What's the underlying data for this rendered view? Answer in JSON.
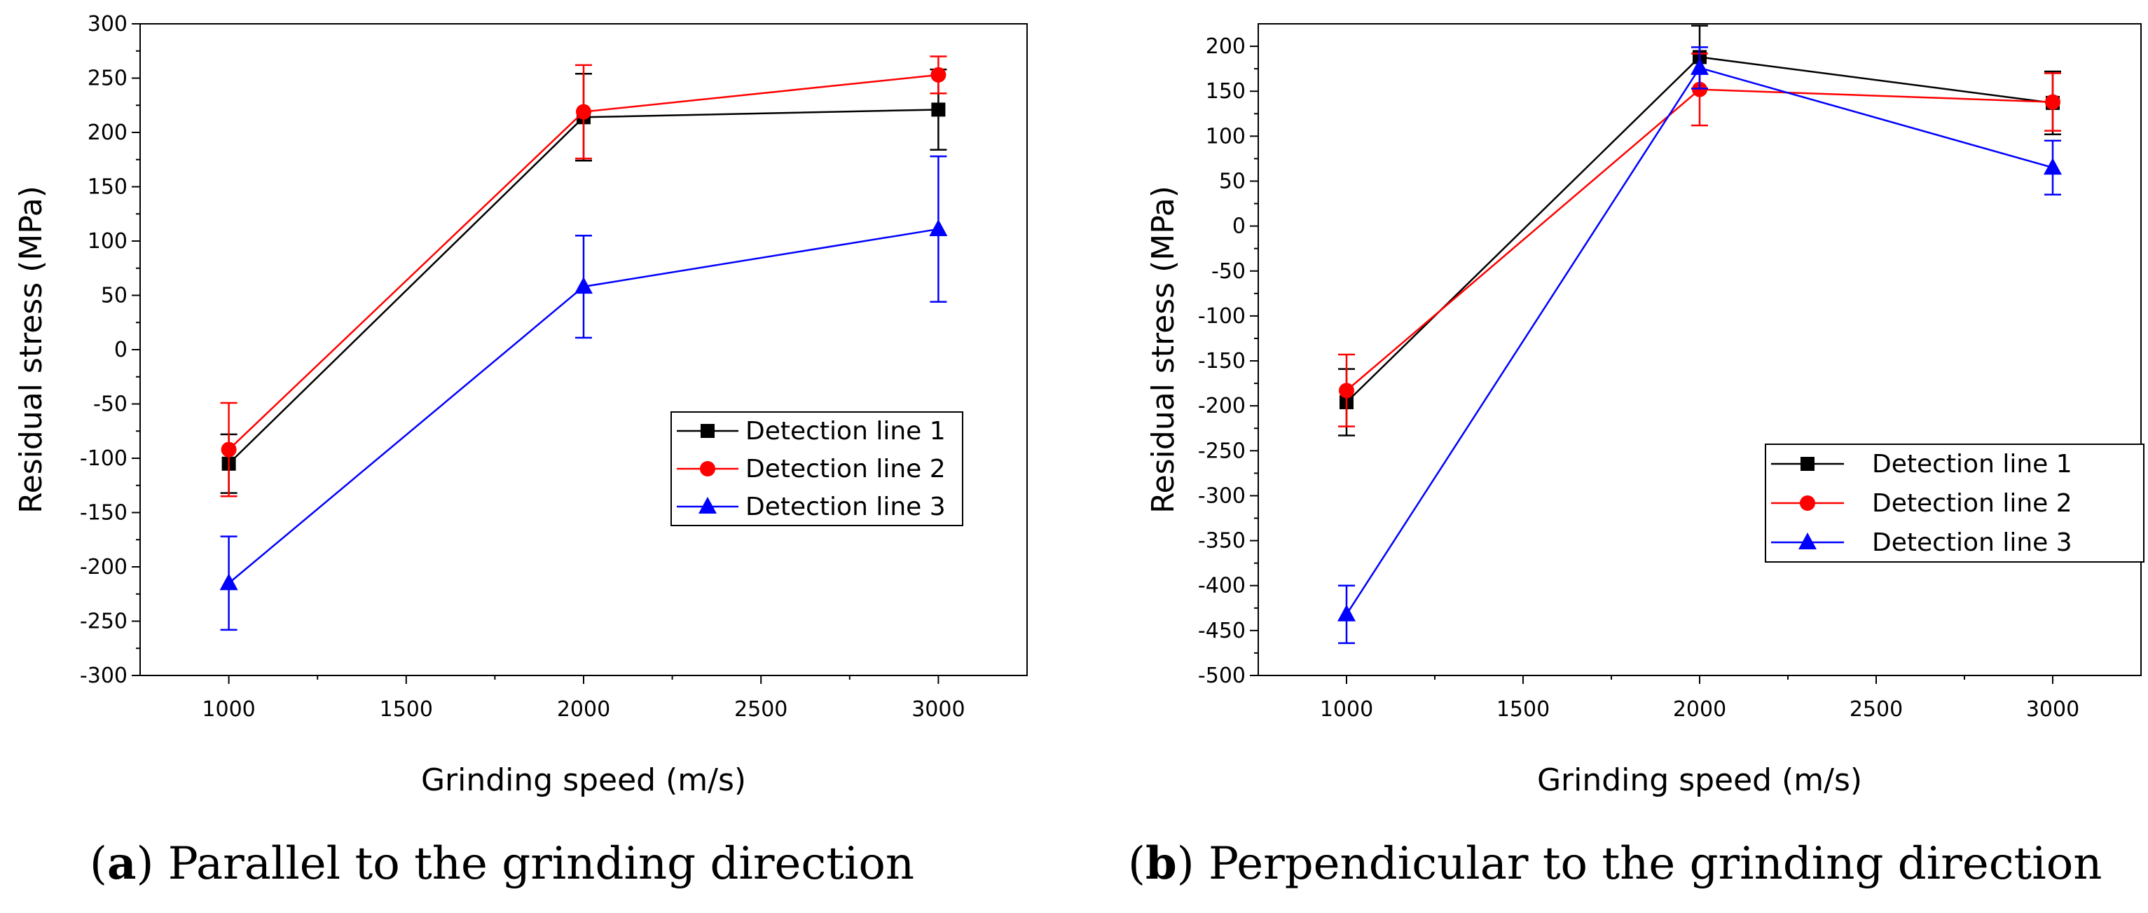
{
  "chart_data": [
    {
      "type": "line",
      "panel": "a",
      "caption_letter": "a",
      "caption_text": "Parallel to the grinding direction",
      "xlabel": "Grinding speed (m/s)",
      "ylabel": "Residual stress (MPa)",
      "xlim": [
        750,
        3250
      ],
      "ylim": [
        -300,
        300
      ],
      "xticks": [
        1000,
        1500,
        2000,
        2500,
        3000
      ],
      "yticks": [
        -300,
        -250,
        -200,
        -150,
        -100,
        -50,
        0,
        50,
        100,
        150,
        200,
        250,
        300
      ],
      "x": [
        1000,
        2000,
        3000
      ],
      "legend_position": "right-middle",
      "series": [
        {
          "name": "Detection line 1",
          "color": "#000000",
          "marker": "square",
          "values": [
            -105,
            214,
            221
          ],
          "error": [
            27,
            40,
            37
          ]
        },
        {
          "name": "Detection line 2",
          "color": "#ff0000",
          "marker": "circle",
          "values": [
            -92,
            219,
            253
          ],
          "error": [
            43,
            43,
            17
          ]
        },
        {
          "name": "Detection line 3",
          "color": "#0000ff",
          "marker": "triangle",
          "values": [
            -215,
            58,
            111
          ],
          "error": [
            43,
            47,
            67
          ]
        }
      ]
    },
    {
      "type": "line",
      "panel": "b",
      "caption_letter": "b",
      "caption_text": "Perpendicular to the grinding direction",
      "xlabel": "Grinding speed (m/s)",
      "ylabel": "Residual stress (MPa)",
      "xlim": [
        750,
        3250
      ],
      "ylim": [
        -500,
        225
      ],
      "xticks": [
        1000,
        1500,
        2000,
        2500,
        3000
      ],
      "yticks": [
        -500,
        -450,
        -400,
        -350,
        -300,
        -250,
        -200,
        -150,
        -100,
        -50,
        0,
        50,
        100,
        150,
        200
      ],
      "x": [
        1000,
        2000,
        3000
      ],
      "legend_position": "right-lower",
      "series": [
        {
          "name": "Detection line 1",
          "color": "#000000",
          "marker": "square",
          "values": [
            -196,
            188,
            137
          ],
          "error": [
            37,
            35,
            35
          ]
        },
        {
          "name": "Detection line 2",
          "color": "#ff0000",
          "marker": "circle",
          "values": [
            -183,
            152,
            138
          ],
          "error": [
            40,
            40,
            32
          ]
        },
        {
          "name": "Detection line 3",
          "color": "#0000ff",
          "marker": "triangle",
          "values": [
            -432,
            176,
            65
          ],
          "error": [
            32,
            23,
            30
          ]
        }
      ]
    }
  ]
}
